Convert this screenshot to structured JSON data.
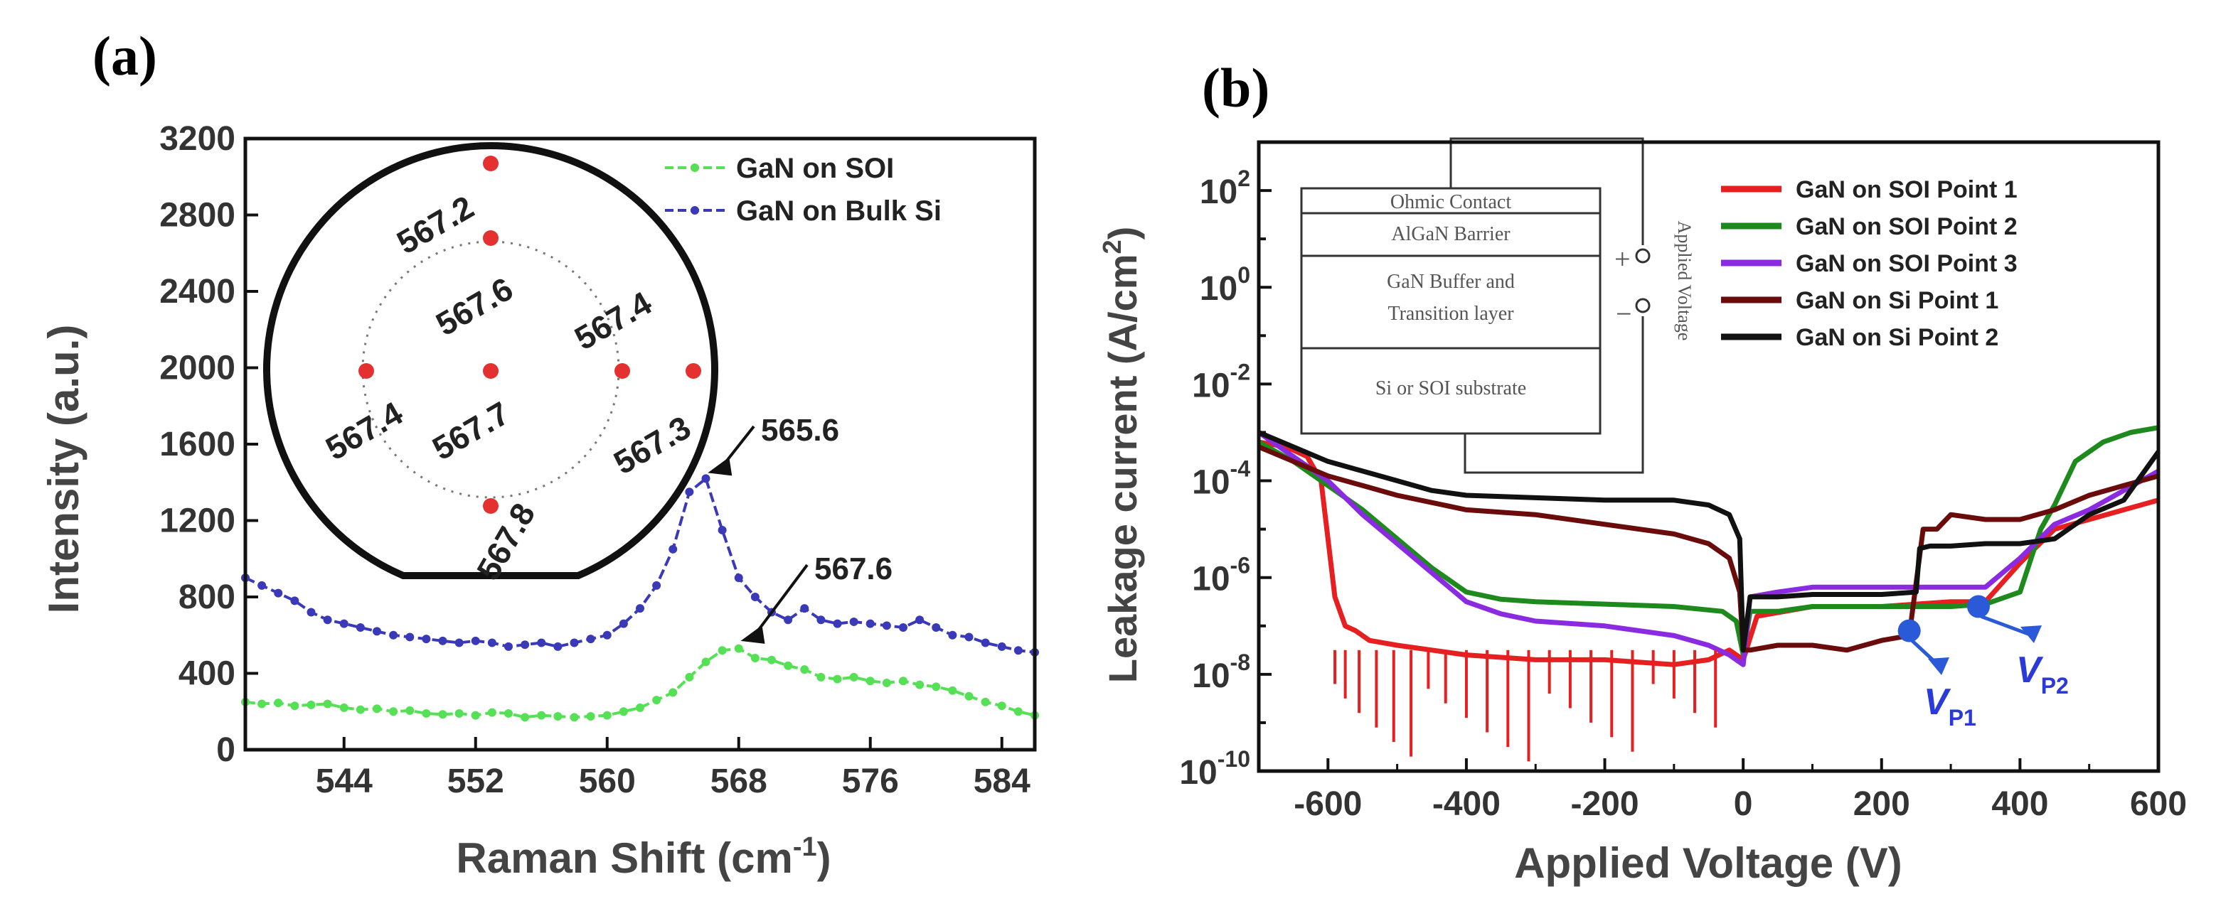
{
  "chart_data": [
    {
      "panel": "(a)",
      "type": "line",
      "xlabel": "Raman Shift (cm",
      "xlabel_sup": "-1",
      "xlabel_end": ")",
      "ylabel": "Intensity (a.u.)",
      "xlim": [
        538,
        586
      ],
      "ylim": [
        0,
        3200
      ],
      "xticks": [
        544,
        552,
        560,
        568,
        576,
        584
      ],
      "yticks": [
        0,
        400,
        800,
        1200,
        1600,
        2000,
        2400,
        2800,
        3200
      ],
      "series": [
        {
          "name": "GaN on SOI",
          "color": "#55e055",
          "x": [
            538,
            539,
            540,
            541,
            542,
            543,
            544,
            545,
            546,
            547,
            548,
            549,
            550,
            551,
            552,
            553,
            554,
            555,
            556,
            557,
            558,
            559,
            560,
            561,
            562,
            563,
            564,
            565,
            566,
            567,
            568,
            569,
            570,
            571,
            572,
            573,
            574,
            575,
            576,
            577,
            578,
            579,
            580,
            581,
            582,
            583,
            584,
            585,
            586
          ],
          "y": [
            250,
            240,
            245,
            230,
            235,
            240,
            220,
            210,
            215,
            200,
            205,
            190,
            185,
            190,
            180,
            195,
            190,
            170,
            180,
            175,
            170,
            175,
            180,
            200,
            220,
            260,
            300,
            380,
            460,
            520,
            530,
            480,
            470,
            440,
            420,
            380,
            370,
            380,
            360,
            350,
            360,
            340,
            330,
            310,
            280,
            250,
            230,
            200,
            180
          ]
        },
        {
          "name": "GaN on Bulk Si",
          "color": "#3a3ab8",
          "x": [
            538,
            539,
            540,
            541,
            542,
            543,
            544,
            545,
            546,
            547,
            548,
            549,
            550,
            551,
            552,
            553,
            554,
            555,
            556,
            557,
            558,
            559,
            560,
            561,
            562,
            563,
            564,
            565,
            566,
            567,
            568,
            569,
            570,
            571,
            572,
            573,
            574,
            575,
            576,
            577,
            578,
            579,
            580,
            581,
            582,
            583,
            584,
            585,
            586
          ],
          "y": [
            900,
            860,
            820,
            780,
            720,
            680,
            660,
            640,
            620,
            600,
            590,
            580,
            570,
            560,
            570,
            560,
            540,
            550,
            560,
            540,
            560,
            580,
            600,
            660,
            740,
            860,
            1050,
            1350,
            1420,
            1150,
            900,
            800,
            720,
            680,
            740,
            680,
            660,
            670,
            660,
            650,
            640,
            680,
            640,
            600,
            590,
            560,
            540,
            520,
            510
          ]
        }
      ],
      "legend": [
        "GaN on SOI",
        "GaN on Bulk Si"
      ],
      "legend_position": "top-right",
      "annotations": [
        {
          "text": "565.6",
          "series": "GaN on Bulk Si",
          "x": 565.6,
          "y": 1420
        },
        {
          "text": "567.6",
          "series": "GaN on SOI",
          "x": 567.6,
          "y": 540
        }
      ],
      "inset_wafer": {
        "points": [
          "567.2",
          "567.6",
          "567.4",
          "567.7",
          "567.4",
          "567.3",
          "567.8"
        ]
      }
    },
    {
      "panel": "(b)",
      "type": "line",
      "xlabel": "Applied Voltage (V)",
      "ylabel": "Leakage current (A/cm",
      "ylabel_sup": "2",
      "ylabel_end": ")",
      "yscale": "log",
      "xlim": [
        -700,
        600
      ],
      "ylim_exp": [
        -10,
        3
      ],
      "xticks": [
        -600,
        -400,
        -200,
        0,
        200,
        400,
        600
      ],
      "yticks_exp": [
        -10,
        -8,
        -6,
        -4,
        -2,
        0,
        2
      ],
      "ytick_base": "10",
      "series": [
        {
          "name": "GaN on SOI Point 1",
          "color": "#e62020",
          "x": [
            -700,
            -660,
            -630,
            -610,
            -600,
            -590,
            -575,
            -560,
            -540,
            -500,
            -450,
            -400,
            -300,
            -200,
            -100,
            -50,
            -20,
            0,
            20,
            100,
            200,
            300,
            350,
            400,
            450,
            500,
            550,
            600
          ],
          "log_y": [
            -3.2,
            -3.3,
            -3.5,
            -4.0,
            -5.2,
            -6.4,
            -7.0,
            -7.1,
            -7.3,
            -7.4,
            -7.5,
            -7.6,
            -7.7,
            -7.7,
            -7.8,
            -7.7,
            -7.5,
            -7.7,
            -6.8,
            -6.6,
            -6.6,
            -6.5,
            -6.5,
            -5.7,
            -5.0,
            -4.8,
            -4.6,
            -4.4
          ]
        },
        {
          "name": "GaN on SOI Point 2",
          "color": "#1e8a1e",
          "x": [
            -700,
            -650,
            -600,
            -550,
            -500,
            -450,
            -400,
            -350,
            -300,
            -200,
            -100,
            -30,
            -10,
            0,
            10,
            50,
            100,
            200,
            300,
            350,
            400,
            430,
            450,
            480,
            520,
            560,
            600
          ],
          "log_y": [
            -3.2,
            -3.6,
            -4.1,
            -4.6,
            -5.2,
            -5.8,
            -6.3,
            -6.45,
            -6.5,
            -6.55,
            -6.6,
            -6.7,
            -6.9,
            -7.6,
            -6.7,
            -6.7,
            -6.6,
            -6.6,
            -6.6,
            -6.55,
            -6.3,
            -5.0,
            -4.5,
            -3.6,
            -3.2,
            -3.0,
            -2.9
          ]
        },
        {
          "name": "GaN on SOI Point 3",
          "color": "#8a2be2",
          "x": [
            -700,
            -650,
            -600,
            -550,
            -500,
            -450,
            -400,
            -350,
            -300,
            -200,
            -100,
            -50,
            -20,
            0,
            10,
            50,
            100,
            200,
            250,
            300,
            350,
            400,
            450,
            500,
            550,
            600
          ],
          "log_y": [
            -3.0,
            -3.5,
            -4.0,
            -4.7,
            -5.3,
            -5.9,
            -6.5,
            -6.75,
            -6.9,
            -7.0,
            -7.2,
            -7.4,
            -7.6,
            -7.8,
            -6.4,
            -6.3,
            -6.2,
            -6.2,
            -6.2,
            -6.2,
            -6.2,
            -5.6,
            -4.9,
            -4.6,
            -4.2,
            -3.8
          ]
        },
        {
          "name": "GaN on Si Point 1",
          "color": "#6b0c0c",
          "x": [
            -700,
            -650,
            -600,
            -550,
            -500,
            -450,
            -400,
            -300,
            -200,
            -100,
            -50,
            -20,
            -5,
            0,
            10,
            50,
            100,
            150,
            200,
            240,
            260,
            280,
            300,
            350,
            400,
            450,
            500,
            550,
            600
          ],
          "log_y": [
            -3.3,
            -3.6,
            -3.9,
            -4.1,
            -4.3,
            -4.45,
            -4.6,
            -4.7,
            -4.9,
            -5.1,
            -5.3,
            -5.6,
            -6.3,
            -7.5,
            -7.5,
            -7.4,
            -7.4,
            -7.5,
            -7.3,
            -7.2,
            -5.0,
            -5.0,
            -4.7,
            -4.8,
            -4.8,
            -4.6,
            -4.3,
            -4.1,
            -3.9
          ]
        },
        {
          "name": "GaN on Si Point 2",
          "color": "#111111",
          "x": [
            -700,
            -650,
            -600,
            -550,
            -500,
            -450,
            -400,
            -300,
            -200,
            -100,
            -50,
            -20,
            -5,
            0,
            10,
            50,
            100,
            200,
            250,
            255,
            270,
            300,
            350,
            400,
            450,
            500,
            550,
            600
          ],
          "log_y": [
            -3.0,
            -3.3,
            -3.6,
            -3.8,
            -4.0,
            -4.2,
            -4.3,
            -4.35,
            -4.4,
            -4.4,
            -4.5,
            -4.7,
            -5.2,
            -7.5,
            -6.4,
            -6.4,
            -6.35,
            -6.35,
            -6.3,
            -5.4,
            -5.35,
            -5.35,
            -5.3,
            -5.3,
            -5.2,
            -4.7,
            -4.4,
            -3.4
          ]
        }
      ],
      "legend": [
        "GaN on SOI Point 1",
        "GaN on SOI Point 2",
        "GaN on SOI Point 3",
        "GaN on Si Point 1",
        "GaN on Si Point 2"
      ],
      "legend_position": "top-right",
      "markers": [
        {
          "label": "V",
          "sub": "P1",
          "x": 240,
          "log_y": -7.1
        },
        {
          "label": "V",
          "sub": "P2",
          "x": 340,
          "log_y": -6.6
        }
      ],
      "inset_stack": {
        "layers": [
          "Ohmic Contact",
          "AlGaN Barrier",
          "GaN Buffer and",
          "Transition layer",
          "Si or SOI substrate"
        ],
        "side_label": "Applied Voltage",
        "plus": "+",
        "minus": "−"
      }
    }
  ]
}
